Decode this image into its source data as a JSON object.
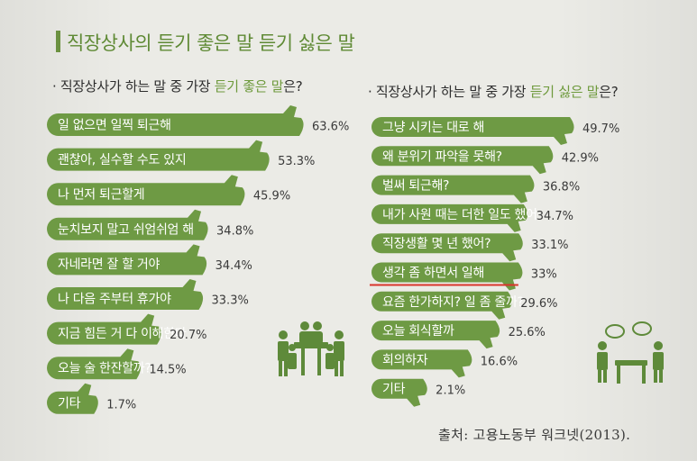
{
  "title": "직장상사의 듣기 좋은 말 듣기 싫은 말",
  "left_heading": {
    "prefix": "· 직장상사가 하는 말 중 가장 ",
    "highlight": "듣기 좋은 말",
    "suffix": "은?"
  },
  "right_heading": {
    "prefix": "· 직장상사가 하는 말 중 가장 ",
    "highlight": "듣기 싫은 말",
    "suffix": "은?"
  },
  "source": "출처: 고용노동부 워크넷(2013).",
  "colors": {
    "bar": "#6e9a44",
    "accent": "#6e9a3c",
    "underline": "#d9342b",
    "icon": "#5e8a3a"
  },
  "icons": [
    "people-meeting-icon",
    "people-chat-icon"
  ],
  "chart_data": [
    {
      "type": "bar",
      "categories": [
        "일 없으면 일찍 퇴근해",
        "괜찮아, 실수할 수도 있지",
        "나 먼저 퇴근할게",
        "눈치보지 말고 쉬엄쉬엄 해",
        "자네라면 잘 할 거야",
        "나 다음 주부터 휴가야",
        "지금 힘든 거 다 이해한다",
        "오늘 술 한잔할까?",
        "기타"
      ],
      "values": [
        63.6,
        53.3,
        45.9,
        34.8,
        34.4,
        33.3,
        20.7,
        14.5,
        1.7
      ],
      "value_labels": [
        "63.6%",
        "53.3%",
        "45.9%",
        "34.8%",
        "34.4%",
        "33.3%",
        "20.7%",
        "14.5%",
        "1.7%"
      ],
      "unit": "%"
    },
    {
      "type": "bar",
      "categories": [
        "그냥 시키는 대로 해",
        "왜 분위기 파악을 못해?",
        "벌써 퇴근해?",
        "내가 사원 때는 더한 일도 했어",
        "직장생활 몇 년 했어?",
        "생각 좀 하면서 일해",
        "요즘 한가하지? 일 좀 줄까?",
        "오늘 회식할까",
        "회의하자",
        "기타"
      ],
      "values": [
        49.7,
        42.9,
        36.8,
        34.7,
        33.1,
        33,
        29.6,
        25.6,
        16.6,
        2.1
      ],
      "value_labels": [
        "49.7%",
        "42.9%",
        "36.8%",
        "34.7%",
        "33.1%",
        "33%",
        "29.6%",
        "25.6%",
        "16.6%",
        "2.1%"
      ],
      "unit": "%",
      "underlined_category": "생각 좀 하면서 일해"
    }
  ]
}
